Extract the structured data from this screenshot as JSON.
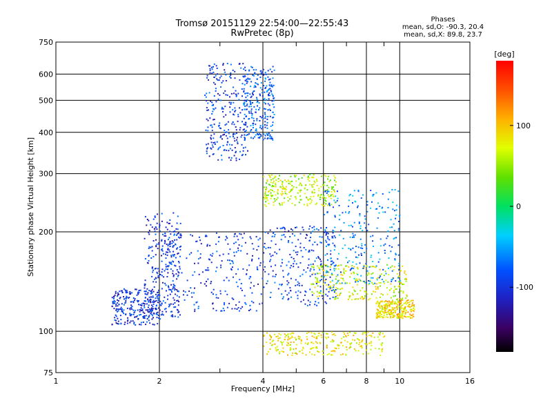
{
  "header": {
    "title_line1": "Tromsø 20151129 22:54:00—22:55:43",
    "title_line2": "RwPretec (8p)",
    "phases_title": "Phases",
    "phases_o": "mean, sd,O: -90.3, 20.4",
    "phases_x": "mean, sd,X:  89.8, 23.7"
  },
  "colorbar": {
    "unit": "[deg]",
    "ticks": [
      "100",
      "0",
      "-100"
    ],
    "tick_values": [
      100,
      0,
      -100
    ],
    "range": [
      -180,
      180
    ]
  },
  "chart_data": {
    "type": "scatter",
    "xlabel": "Frequency [MHz]",
    "ylabel": "Stationary phase Virtual Height [km]",
    "xscale": "log",
    "yscale": "log",
    "xlim": [
      1,
      16
    ],
    "ylim": [
      75,
      750
    ],
    "xticks": [
      1,
      2,
      4,
      6,
      8,
      10,
      16
    ],
    "xtick_labels": [
      "1",
      "2",
      "4",
      "6",
      "8",
      "10",
      "16"
    ],
    "yticks": [
      75,
      100,
      200,
      300,
      400,
      500,
      600,
      750
    ],
    "ytick_labels": [
      "75",
      "100",
      "200",
      "300",
      "400",
      "500",
      "600",
      "750"
    ],
    "grid": true,
    "clusters": [
      {
        "x": [
          1.8,
          2.3
        ],
        "y": [
          110,
          230
        ],
        "phase": -100
      },
      {
        "x": [
          1.45,
          2.0
        ],
        "y": [
          105,
          135
        ],
        "phase": -100
      },
      {
        "x": [
          2.0,
          4.0
        ],
        "y": [
          115,
          200
        ],
        "phase": -95
      },
      {
        "x": [
          4.0,
          6.5
        ],
        "y": [
          120,
          210
        ],
        "phase": -90
      },
      {
        "x": [
          2.7,
          3.6
        ],
        "y": [
          330,
          650
        ],
        "phase": -95
      },
      {
        "x": [
          3.5,
          4.3
        ],
        "y": [
          380,
          640
        ],
        "phase": -80
      },
      {
        "x": [
          4.0,
          6.5
        ],
        "y": [
          240,
          300
        ],
        "phase": 60
      },
      {
        "x": [
          5.5,
          10.5
        ],
        "y": [
          125,
          160
        ],
        "phase": 70
      },
      {
        "x": [
          8.5,
          11.0
        ],
        "y": [
          110,
          125
        ],
        "phase": 90
      },
      {
        "x": [
          4.0,
          9.0
        ],
        "y": [
          85,
          100
        ],
        "phase": 80
      },
      {
        "x": [
          6.0,
          10.0
        ],
        "y": [
          140,
          270
        ],
        "phase": -60
      }
    ]
  }
}
